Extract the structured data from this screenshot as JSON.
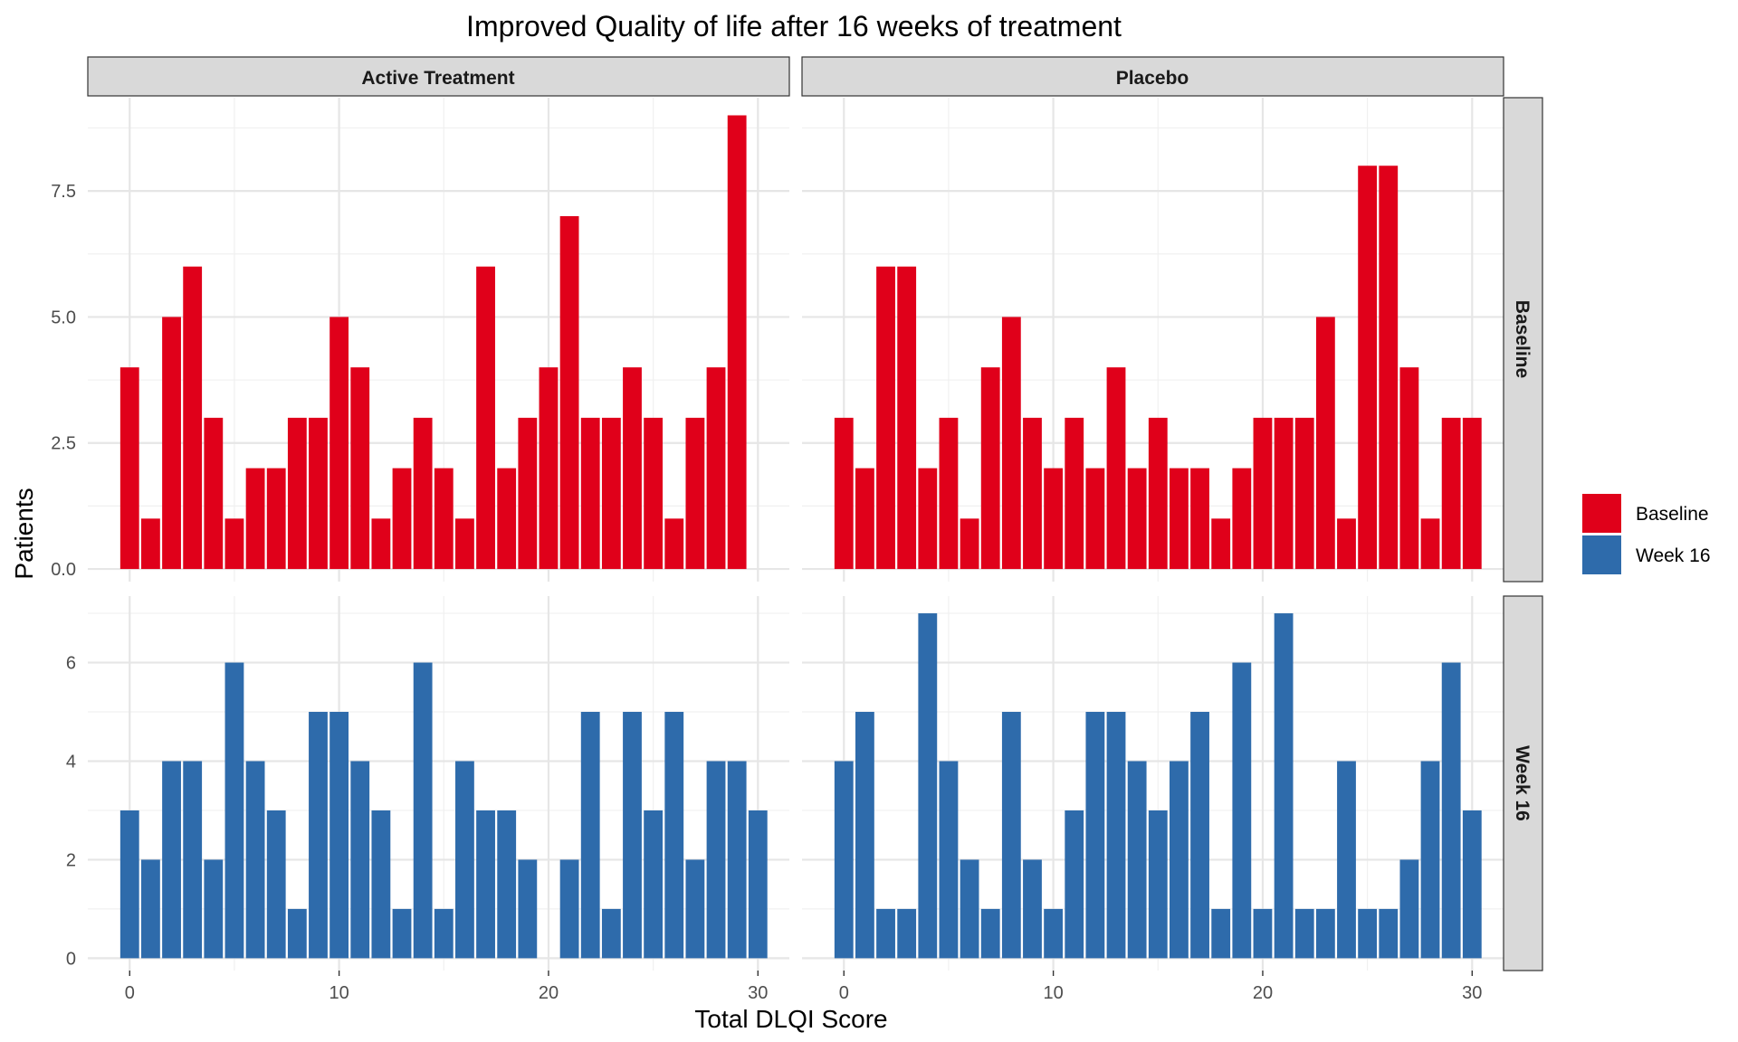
{
  "chart_data": {
    "type": "bar",
    "title": "Improved Quality of life after 16 weeks of treatment",
    "xlabel": "Total DLQI Score",
    "ylabel": "Patients",
    "column_facets": [
      "Active Treatment",
      "Placebo"
    ],
    "row_facets": [
      "Baseline",
      "Week 16"
    ],
    "x": [
      0,
      1,
      2,
      3,
      4,
      5,
      6,
      7,
      8,
      9,
      10,
      11,
      12,
      13,
      14,
      15,
      16,
      17,
      18,
      19,
      20,
      21,
      22,
      23,
      24,
      25,
      26,
      27,
      28,
      29,
      30
    ],
    "xlim": [
      -2,
      31.5
    ],
    "x_ticks": [
      0,
      10,
      20,
      30
    ],
    "rows": [
      {
        "name": "Baseline",
        "ylim": [
          -0.25,
          9.35
        ],
        "y_ticks": [
          "0.0",
          "2.5",
          "5.0",
          "7.5"
        ],
        "y_tick_values": [
          0,
          2.5,
          5,
          7.5
        ],
        "panels": [
          {
            "facet": "Active Treatment",
            "values": [
              4,
              1,
              5,
              6,
              3,
              1,
              2,
              2,
              3,
              3,
              5,
              4,
              1,
              2,
              3,
              2,
              1,
              6,
              2,
              3,
              4,
              7,
              3,
              3,
              4,
              3,
              1,
              3,
              4,
              9,
              0
            ]
          },
          {
            "facet": "Placebo",
            "values": [
              3,
              2,
              6,
              6,
              2,
              3,
              1,
              4,
              5,
              3,
              2,
              3,
              2,
              4,
              2,
              3,
              2,
              2,
              1,
              2,
              3,
              3,
              3,
              5,
              1,
              8,
              8,
              4,
              1,
              3,
              3
            ]
          }
        ]
      },
      {
        "name": "Week 16",
        "ylim": [
          -0.25,
          7.35
        ],
        "y_ticks": [
          "0",
          "2",
          "4",
          "6"
        ],
        "y_tick_values": [
          0,
          2,
          4,
          6
        ],
        "panels": [
          {
            "facet": "Active Treatment",
            "values": [
              3,
              2,
              4,
              4,
              2,
              6,
              4,
              3,
              1,
              5,
              5,
              4,
              3,
              1,
              6,
              1,
              4,
              3,
              3,
              2,
              0,
              2,
              5,
              1,
              5,
              3,
              5,
              2,
              4,
              4,
              3
            ]
          },
          {
            "facet": "Placebo",
            "values": [
              4,
              5,
              1,
              1,
              7,
              4,
              2,
              1,
              5,
              2,
              1,
              3,
              5,
              5,
              4,
              3,
              4,
              5,
              1,
              6,
              1,
              7,
              1,
              1,
              4,
              1,
              1,
              2,
              4,
              6,
              3
            ]
          }
        ]
      }
    ],
    "legend": {
      "position": "right",
      "items": [
        {
          "label": "Baseline",
          "color": "#e0001a"
        },
        {
          "label": "Week 16",
          "color": "#2e6bab"
        }
      ]
    },
    "grid": true
  }
}
